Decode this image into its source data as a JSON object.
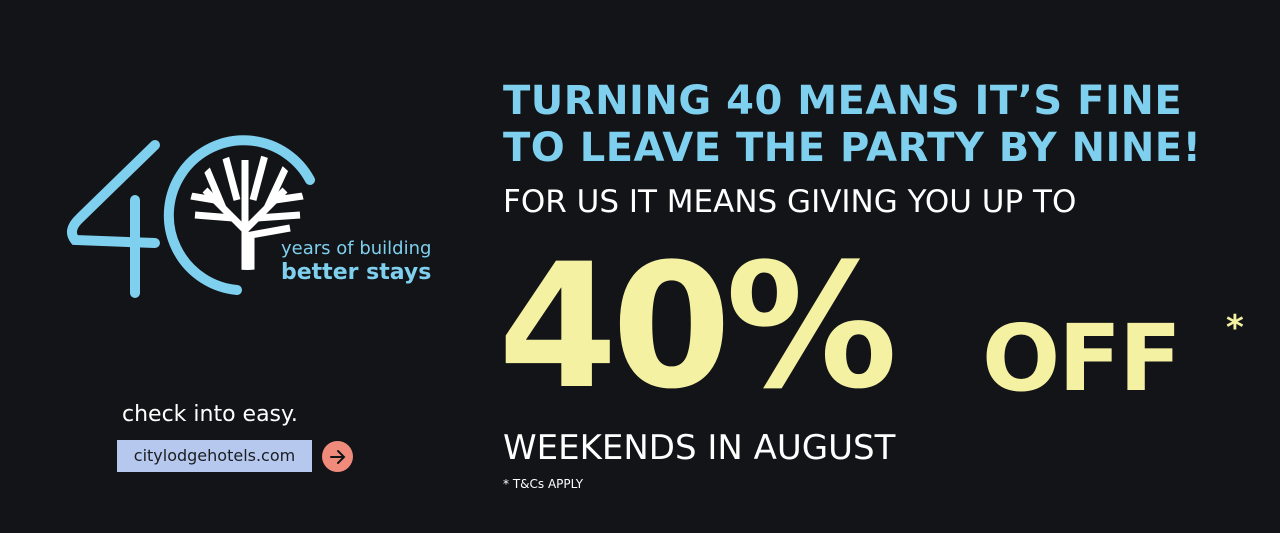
{
  "colors": {
    "background": "#121417",
    "accent_blue": "#7fcfee",
    "accent_yellow": "#f5f1a3",
    "url_box": "#b7c8ee",
    "arrow_button": "#f08b7b"
  },
  "logo": {
    "number": "40",
    "tagline_line1": "years of building",
    "tagline_line2": "better stays",
    "icon": "tree-icon"
  },
  "cta": {
    "slogan": "check into easy.",
    "url": "citylodgehotels.com",
    "arrow_icon": "arrow-right-icon"
  },
  "headline": {
    "line1": "TURNING 40 MEANS IT’S FINE",
    "line2": "TO LEAVE THE PARTY BY NINE!"
  },
  "offer": {
    "intro": "FOR US IT MEANS GIVING YOU UP TO",
    "percent": "40%",
    "off": "OFF",
    "asterisk": "*",
    "period": "WEEKENDS IN AUGUST",
    "terms": "* T&Cs APPLY"
  }
}
